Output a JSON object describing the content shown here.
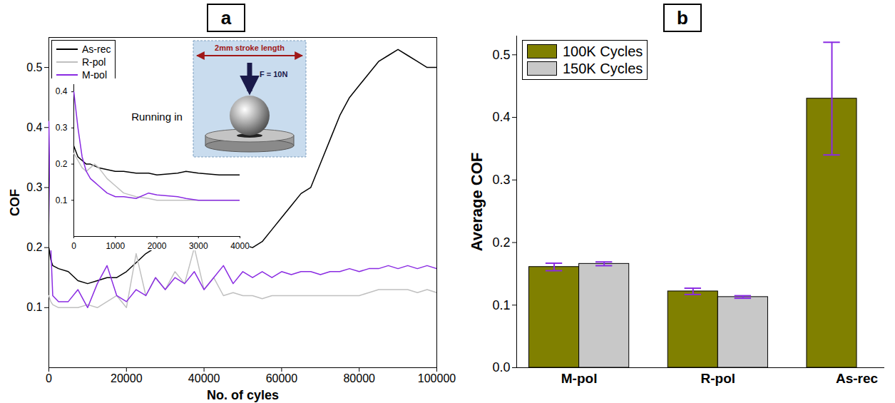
{
  "chart_data": [
    {
      "type": "line",
      "title": "a",
      "x_label": "No. of cyles",
      "y_label": "COF",
      "legend": "top-left",
      "annotations": [
        "2mm stroke length",
        "F = 10N"
      ],
      "xlim": [
        0,
        100000
      ],
      "xticks": [
        0,
        20000,
        40000,
        60000,
        80000,
        100000
      ],
      "ylim": [
        0,
        0.55
      ],
      "yticks": [
        0.1,
        0.2,
        0.3,
        0.4,
        0.5
      ],
      "x": [
        0,
        500,
        1000,
        2500,
        5000,
        7500,
        10000,
        12500,
        15000,
        17500,
        20000,
        22500,
        25000,
        27500,
        30000,
        32500,
        35000,
        37500,
        40000,
        42500,
        45000,
        47500,
        50000,
        52500,
        55000,
        57500,
        60000,
        62500,
        65000,
        67500,
        70000,
        72500,
        75000,
        77500,
        80000,
        82500,
        85000,
        87500,
        90000,
        92500,
        95000,
        97500,
        100000
      ],
      "series": [
        {
          "name": "As-rec",
          "color": "#000000",
          "values": [
            0.2,
            0.18,
            0.17,
            0.165,
            0.16,
            0.145,
            0.14,
            0.145,
            0.15,
            0.15,
            0.16,
            0.175,
            0.19,
            0.2,
            0.21,
            0.215,
            0.22,
            0.215,
            0.21,
            0.215,
            0.21,
            0.2,
            0.205,
            0.2,
            0.21,
            0.23,
            0.25,
            0.27,
            0.29,
            0.3,
            0.34,
            0.38,
            0.42,
            0.45,
            0.47,
            0.49,
            0.51,
            0.52,
            0.53,
            0.52,
            0.51,
            0.5,
            0.5
          ]
        },
        {
          "name": "R-pol",
          "color": "#c0c0c0",
          "values": [
            0.12,
            0.11,
            0.105,
            0.1,
            0.1,
            0.1,
            0.105,
            0.1,
            0.11,
            0.12,
            0.1,
            0.19,
            0.12,
            0.15,
            0.13,
            0.16,
            0.14,
            0.2,
            0.13,
            0.15,
            0.12,
            0.125,
            0.12,
            0.12,
            0.115,
            0.12,
            0.12,
            0.12,
            0.12,
            0.12,
            0.12,
            0.12,
            0.12,
            0.12,
            0.12,
            0.125,
            0.13,
            0.13,
            0.13,
            0.13,
            0.125,
            0.13,
            0.125
          ]
        },
        {
          "name": "M-pol",
          "color": "#8a2be2",
          "values": [
            0.41,
            0.2,
            0.12,
            0.11,
            0.11,
            0.13,
            0.1,
            0.14,
            0.17,
            0.12,
            0.11,
            0.13,
            0.12,
            0.15,
            0.13,
            0.15,
            0.14,
            0.16,
            0.13,
            0.15,
            0.17,
            0.14,
            0.16,
            0.15,
            0.16,
            0.15,
            0.16,
            0.155,
            0.16,
            0.16,
            0.155,
            0.16,
            0.16,
            0.165,
            0.16,
            0.165,
            0.165,
            0.17,
            0.165,
            0.17,
            0.165,
            0.17,
            0.165
          ]
        }
      ]
    },
    {
      "type": "line",
      "annotations": [
        "Running in"
      ],
      "xlim": [
        0,
        4000
      ],
      "xticks": [
        0,
        1000,
        2000,
        3000,
        4000
      ],
      "ylim": [
        0,
        0.42
      ],
      "yticks": [
        0.1,
        0.2,
        0.3,
        0.4
      ],
      "x": [
        0,
        100,
        200,
        300,
        400,
        500,
        600,
        800,
        1000,
        1200,
        1500,
        1800,
        2000,
        2500,
        2700,
        3000,
        3500,
        4000
      ],
      "series": [
        {
          "name": "As-rec",
          "color": "#000000",
          "values": [
            0.25,
            0.22,
            0.21,
            0.2,
            0.2,
            0.195,
            0.19,
            0.185,
            0.18,
            0.18,
            0.175,
            0.175,
            0.17,
            0.175,
            0.18,
            0.175,
            0.17,
            0.17
          ]
        },
        {
          "name": "R-pol",
          "color": "#c0c0c0",
          "values": [
            0.23,
            0.21,
            0.19,
            0.18,
            0.19,
            0.2,
            0.19,
            0.16,
            0.14,
            0.12,
            0.11,
            0.105,
            0.1,
            0.1,
            0.1,
            0.1,
            0.1,
            0.1
          ]
        },
        {
          "name": "M-pol",
          "color": "#8a2be2",
          "values": [
            0.4,
            0.3,
            0.22,
            0.18,
            0.16,
            0.15,
            0.14,
            0.12,
            0.11,
            0.11,
            0.105,
            0.12,
            0.115,
            0.11,
            0.105,
            0.1,
            0.1,
            0.1
          ]
        }
      ]
    },
    {
      "type": "bar",
      "title": "b",
      "y_label": "Average COF",
      "legend": "top-left",
      "categories": [
        "M-pol",
        "R-pol",
        "As-rec"
      ],
      "ylim": [
        0,
        0.53
      ],
      "yticks": [
        {
          "value": 0,
          "label": "0.0"
        },
        0.1,
        0.2,
        0.3,
        0.4,
        0.5
      ],
      "series": [
        {
          "name": "100K Cycles",
          "color": "#808000",
          "values": [
            0.161,
            0.122,
            0.43
          ],
          "errors": [
            0.006,
            0.005,
            0.09
          ]
        },
        {
          "name": "150K Cycles",
          "color": "#c8c8c8",
          "values": [
            0.166,
            0.113,
            null
          ],
          "errors": [
            0.003,
            0.002,
            null
          ]
        }
      ]
    }
  ]
}
